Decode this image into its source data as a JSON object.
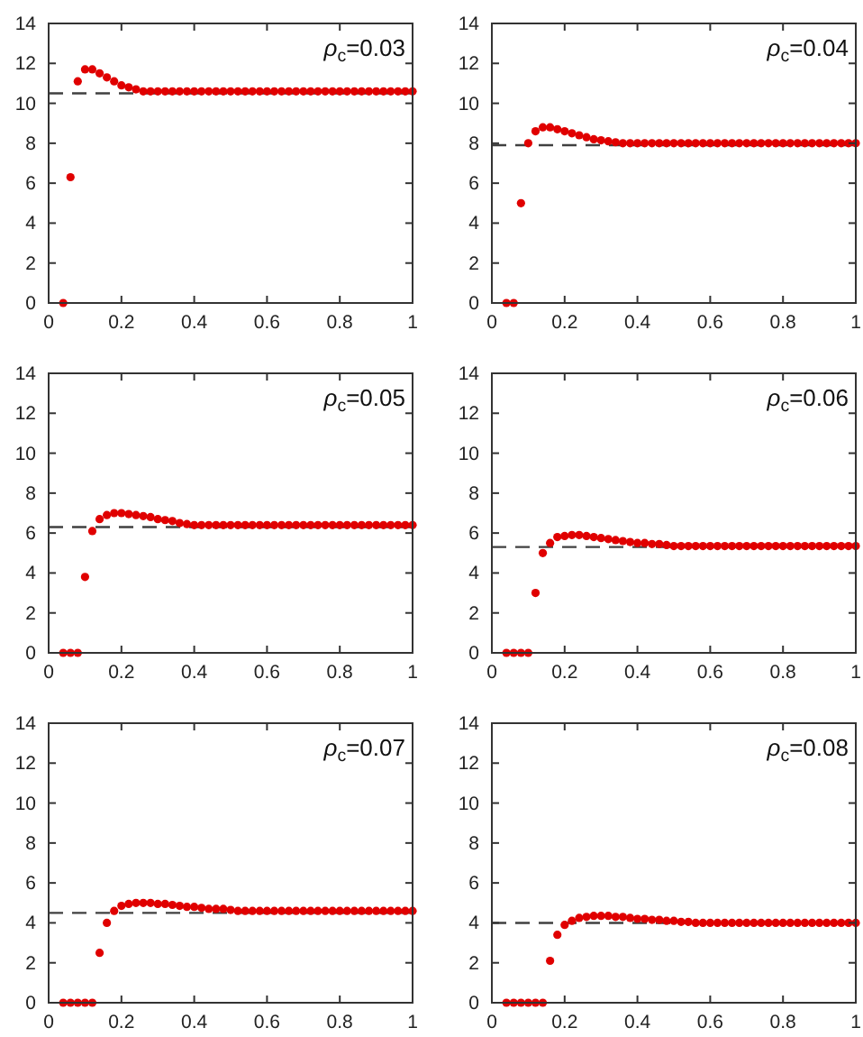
{
  "chart_data": [
    {
      "type": "scatter",
      "annotations": [
        "ρ$_{c}$=0.03"
      ],
      "marker": "circle",
      "xlim": [
        0,
        1
      ],
      "xticks": [
        0,
        0.2,
        0.4,
        0.6,
        0.8,
        1
      ],
      "ylim": [
        0,
        14
      ],
      "yticks": [
        0,
        2,
        4,
        6,
        8,
        10,
        12,
        14
      ],
      "x": [
        0.04,
        0.06,
        0.08,
        0.1,
        0.12,
        0.14,
        0.16,
        0.18,
        0.2,
        0.22,
        0.24,
        0.26,
        0.28,
        0.3,
        0.32,
        0.34,
        0.36,
        0.38,
        0.4,
        0.42,
        0.44,
        0.46,
        0.48,
        0.5,
        0.52,
        0.54,
        0.56,
        0.58,
        0.6,
        0.62,
        0.64,
        0.66,
        0.68,
        0.7,
        0.72,
        0.74,
        0.76,
        0.78,
        0.8,
        0.82,
        0.84,
        0.86,
        0.88,
        0.9,
        0.92,
        0.94,
        0.96,
        0.98,
        1
      ],
      "series": [
        {
          "color": "#e00000",
          "values": [
            0,
            6.3,
            11.1,
            11.7,
            11.7,
            11.5,
            11.3,
            11.1,
            10.9,
            10.8,
            10.7,
            10.6,
            10.6,
            10.6,
            10.6,
            10.6,
            10.6,
            10.6,
            10.6,
            10.6,
            10.6,
            10.6,
            10.6,
            10.6,
            10.6,
            10.6,
            10.6,
            10.6,
            10.6,
            10.6,
            10.6,
            10.6,
            10.6,
            10.6,
            10.6,
            10.6,
            10.6,
            10.6,
            10.6,
            10.6,
            10.6,
            10.6,
            10.6,
            10.6,
            10.6,
            10.6,
            10.6,
            10.6,
            10.6
          ]
        }
      ],
      "ref_lines": [
        {
          "axis": "y",
          "value": 10.5,
          "color": "#404040",
          "line_style": "dashed"
        }
      ]
    },
    {
      "type": "scatter",
      "annotations": [
        "ρ$_{c}$=0.04"
      ],
      "marker": "circle",
      "xlim": [
        0,
        1
      ],
      "xticks": [
        0,
        0.2,
        0.4,
        0.6,
        0.8,
        1
      ],
      "ylim": [
        0,
        14
      ],
      "yticks": [
        0,
        2,
        4,
        6,
        8,
        10,
        12,
        14
      ],
      "x": [
        0.04,
        0.06,
        0.08,
        0.1,
        0.12,
        0.14,
        0.16,
        0.18,
        0.2,
        0.22,
        0.24,
        0.26,
        0.28,
        0.3,
        0.32,
        0.34,
        0.36,
        0.38,
        0.4,
        0.42,
        0.44,
        0.46,
        0.48,
        0.5,
        0.52,
        0.54,
        0.56,
        0.58,
        0.6,
        0.62,
        0.64,
        0.66,
        0.68,
        0.7,
        0.72,
        0.74,
        0.76,
        0.78,
        0.8,
        0.82,
        0.84,
        0.86,
        0.88,
        0.9,
        0.92,
        0.94,
        0.96,
        0.98,
        1
      ],
      "series": [
        {
          "color": "#e00000",
          "values": [
            0,
            0,
            5.0,
            8.0,
            8.6,
            8.8,
            8.8,
            8.7,
            8.6,
            8.5,
            8.4,
            8.3,
            8.2,
            8.15,
            8.1,
            8.05,
            8.0,
            8.0,
            8.0,
            8.0,
            8.0,
            8.0,
            8.0,
            8.0,
            8.0,
            8.0,
            8.0,
            8.0,
            8.0,
            8.0,
            8.0,
            8.0,
            8.0,
            8.0,
            8.0,
            8.0,
            8.0,
            8.0,
            8.0,
            8.0,
            8.0,
            8.0,
            8.0,
            8.0,
            8.0,
            8.0,
            8.0,
            8.0,
            8.0
          ]
        }
      ],
      "ref_lines": [
        {
          "axis": "y",
          "value": 7.9,
          "color": "#404040",
          "line_style": "dashed"
        }
      ]
    },
    {
      "type": "scatter",
      "annotations": [
        "ρ$_{c}$=0.05"
      ],
      "marker": "circle",
      "xlim": [
        0,
        1
      ],
      "xticks": [
        0,
        0.2,
        0.4,
        0.6,
        0.8,
        1
      ],
      "ylim": [
        0,
        14
      ],
      "yticks": [
        0,
        2,
        4,
        6,
        8,
        10,
        12,
        14
      ],
      "x": [
        0.04,
        0.06,
        0.08,
        0.1,
        0.12,
        0.14,
        0.16,
        0.18,
        0.2,
        0.22,
        0.24,
        0.26,
        0.28,
        0.3,
        0.32,
        0.34,
        0.36,
        0.38,
        0.4,
        0.42,
        0.44,
        0.46,
        0.48,
        0.5,
        0.52,
        0.54,
        0.56,
        0.58,
        0.6,
        0.62,
        0.64,
        0.66,
        0.68,
        0.7,
        0.72,
        0.74,
        0.76,
        0.78,
        0.8,
        0.82,
        0.84,
        0.86,
        0.88,
        0.9,
        0.92,
        0.94,
        0.96,
        0.98,
        1
      ],
      "series": [
        {
          "color": "#e00000",
          "values": [
            0,
            0,
            0,
            3.8,
            6.1,
            6.7,
            6.9,
            7.0,
            7.0,
            6.95,
            6.9,
            6.85,
            6.8,
            6.7,
            6.65,
            6.6,
            6.5,
            6.45,
            6.4,
            6.4,
            6.4,
            6.4,
            6.4,
            6.4,
            6.4,
            6.4,
            6.4,
            6.4,
            6.4,
            6.4,
            6.4,
            6.4,
            6.4,
            6.4,
            6.4,
            6.4,
            6.4,
            6.4,
            6.4,
            6.4,
            6.4,
            6.4,
            6.4,
            6.4,
            6.4,
            6.4,
            6.4,
            6.4,
            6.4
          ]
        }
      ],
      "ref_lines": [
        {
          "axis": "y",
          "value": 6.3,
          "color": "#404040",
          "line_style": "dashed"
        }
      ]
    },
    {
      "type": "scatter",
      "annotations": [
        "ρ$_{c}$=0.06"
      ],
      "marker": "circle",
      "xlim": [
        0,
        1
      ],
      "xticks": [
        0,
        0.2,
        0.4,
        0.6,
        0.8,
        1
      ],
      "ylim": [
        0,
        14
      ],
      "yticks": [
        0,
        2,
        4,
        6,
        8,
        10,
        12,
        14
      ],
      "x": [
        0.04,
        0.06,
        0.08,
        0.1,
        0.12,
        0.14,
        0.16,
        0.18,
        0.2,
        0.22,
        0.24,
        0.26,
        0.28,
        0.3,
        0.32,
        0.34,
        0.36,
        0.38,
        0.4,
        0.42,
        0.44,
        0.46,
        0.48,
        0.5,
        0.52,
        0.54,
        0.56,
        0.58,
        0.6,
        0.62,
        0.64,
        0.66,
        0.68,
        0.7,
        0.72,
        0.74,
        0.76,
        0.78,
        0.8,
        0.82,
        0.84,
        0.86,
        0.88,
        0.9,
        0.92,
        0.94,
        0.96,
        0.98,
        1
      ],
      "series": [
        {
          "color": "#e00000",
          "values": [
            0,
            0,
            0,
            0,
            3.0,
            5.0,
            5.5,
            5.8,
            5.85,
            5.9,
            5.9,
            5.85,
            5.8,
            5.75,
            5.7,
            5.65,
            5.6,
            5.55,
            5.5,
            5.5,
            5.45,
            5.45,
            5.4,
            5.35,
            5.35,
            5.35,
            5.35,
            5.35,
            5.35,
            5.35,
            5.35,
            5.35,
            5.35,
            5.35,
            5.35,
            5.35,
            5.35,
            5.35,
            5.35,
            5.35,
            5.35,
            5.35,
            5.35,
            5.35,
            5.35,
            5.35,
            5.35,
            5.35,
            5.35
          ]
        }
      ],
      "ref_lines": [
        {
          "axis": "y",
          "value": 5.3,
          "color": "#404040",
          "line_style": "dashed"
        }
      ]
    },
    {
      "type": "scatter",
      "annotations": [
        "ρ$_{c}$=0.07"
      ],
      "marker": "circle",
      "xlim": [
        0,
        1
      ],
      "xticks": [
        0,
        0.2,
        0.4,
        0.6,
        0.8,
        1
      ],
      "ylim": [
        0,
        14
      ],
      "yticks": [
        0,
        2,
        4,
        6,
        8,
        10,
        12,
        14
      ],
      "x": [
        0.04,
        0.06,
        0.08,
        0.1,
        0.12,
        0.14,
        0.16,
        0.18,
        0.2,
        0.22,
        0.24,
        0.26,
        0.28,
        0.3,
        0.32,
        0.34,
        0.36,
        0.38,
        0.4,
        0.42,
        0.44,
        0.46,
        0.48,
        0.5,
        0.52,
        0.54,
        0.56,
        0.58,
        0.6,
        0.62,
        0.64,
        0.66,
        0.68,
        0.7,
        0.72,
        0.74,
        0.76,
        0.78,
        0.8,
        0.82,
        0.84,
        0.86,
        0.88,
        0.9,
        0.92,
        0.94,
        0.96,
        0.98,
        1
      ],
      "series": [
        {
          "color": "#e00000",
          "values": [
            0,
            0,
            0,
            0,
            0,
            2.5,
            4.0,
            4.6,
            4.85,
            4.95,
            5.0,
            5.0,
            5.0,
            4.95,
            4.95,
            4.9,
            4.85,
            4.8,
            4.8,
            4.75,
            4.7,
            4.7,
            4.7,
            4.65,
            4.6,
            4.6,
            4.6,
            4.6,
            4.6,
            4.6,
            4.6,
            4.6,
            4.6,
            4.6,
            4.6,
            4.6,
            4.6,
            4.6,
            4.6,
            4.6,
            4.6,
            4.6,
            4.6,
            4.6,
            4.6,
            4.6,
            4.6,
            4.6,
            4.6
          ]
        }
      ],
      "ref_lines": [
        {
          "axis": "y",
          "value": 4.5,
          "color": "#404040",
          "line_style": "dashed"
        }
      ]
    },
    {
      "type": "scatter",
      "annotations": [
        "ρ$_{c}$=0.08"
      ],
      "marker": "circle",
      "xlim": [
        0,
        1
      ],
      "xticks": [
        0,
        0.2,
        0.4,
        0.6,
        0.8,
        1
      ],
      "ylim": [
        0,
        14
      ],
      "yticks": [
        0,
        2,
        4,
        6,
        8,
        10,
        12,
        14
      ],
      "x": [
        0.04,
        0.06,
        0.08,
        0.1,
        0.12,
        0.14,
        0.16,
        0.18,
        0.2,
        0.22,
        0.24,
        0.26,
        0.28,
        0.3,
        0.32,
        0.34,
        0.36,
        0.38,
        0.4,
        0.42,
        0.44,
        0.46,
        0.48,
        0.5,
        0.52,
        0.54,
        0.56,
        0.58,
        0.6,
        0.62,
        0.64,
        0.66,
        0.68,
        0.7,
        0.72,
        0.74,
        0.76,
        0.78,
        0.8,
        0.82,
        0.84,
        0.86,
        0.88,
        0.9,
        0.92,
        0.94,
        0.96,
        0.98,
        1
      ],
      "series": [
        {
          "color": "#e00000",
          "values": [
            0,
            0,
            0,
            0,
            0,
            0,
            2.1,
            3.4,
            3.9,
            4.1,
            4.25,
            4.3,
            4.35,
            4.35,
            4.35,
            4.3,
            4.3,
            4.25,
            4.2,
            4.2,
            4.15,
            4.15,
            4.1,
            4.1,
            4.05,
            4.05,
            4.0,
            4.0,
            4.0,
            4.0,
            4.0,
            4.0,
            4.0,
            4.0,
            4.0,
            4.0,
            4.0,
            4.0,
            4.0,
            4.0,
            4.0,
            4.0,
            4.0,
            4.0,
            4.0,
            4.0,
            4.0,
            4.0,
            4.0
          ]
        }
      ],
      "ref_lines": [
        {
          "axis": "y",
          "value": 4.0,
          "color": "#404040",
          "line_style": "dashed"
        }
      ]
    }
  ]
}
